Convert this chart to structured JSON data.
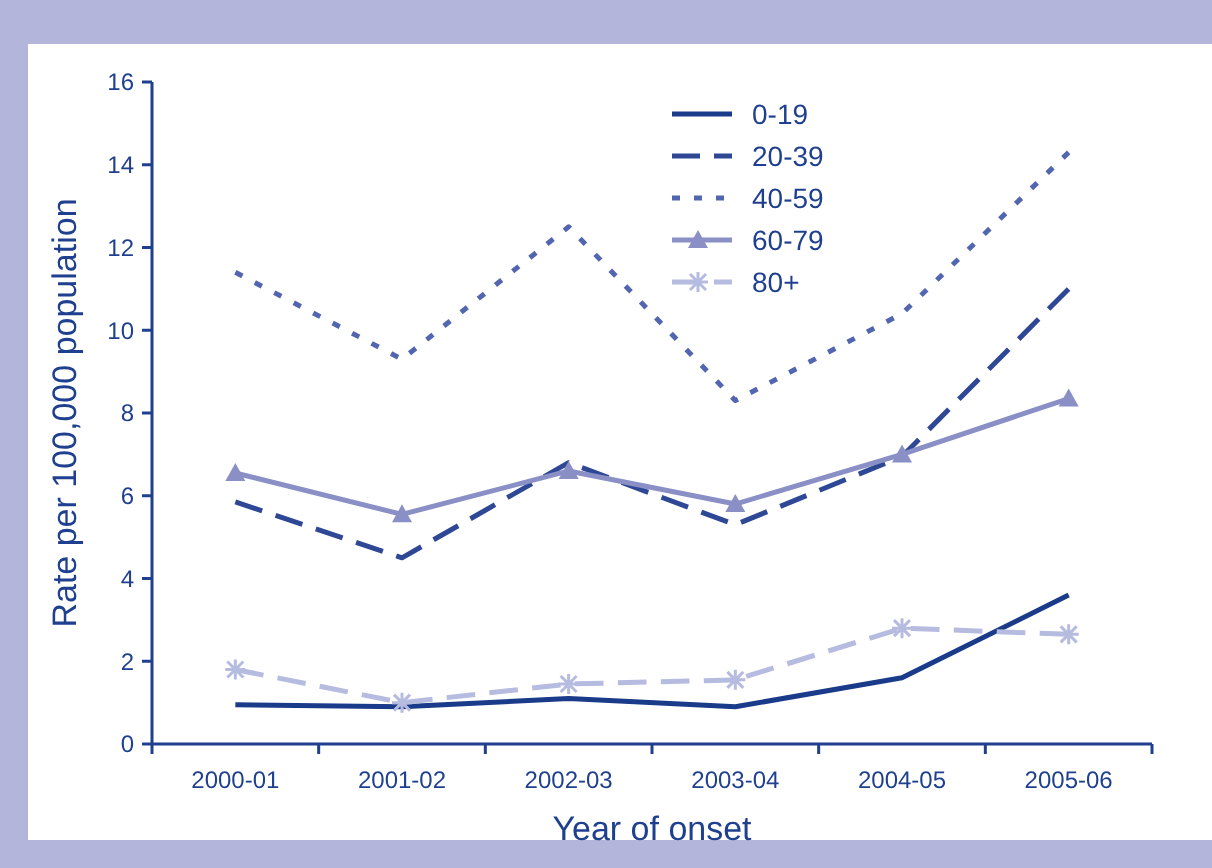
{
  "chart_data": {
    "type": "line",
    "xlabel": "Year of onset",
    "ylabel": "Rate per 100,000 population",
    "categories": [
      "2000-01",
      "2001-02",
      "2002-03",
      "2003-04",
      "2004-05",
      "2005-06"
    ],
    "series": [
      {
        "name": "0-19",
        "color": "#1a3a8a",
        "line_style": "solid",
        "marker": "none",
        "values": [
          0.95,
          0.9,
          1.1,
          0.9,
          1.6,
          3.6
        ]
      },
      {
        "name": "20-39",
        "color": "#2e4896",
        "line_style": "dashed",
        "marker": "none",
        "values": [
          5.85,
          4.5,
          6.8,
          5.3,
          6.95,
          11.0
        ]
      },
      {
        "name": "40-59",
        "color": "#5266b0",
        "line_style": "dotted",
        "marker": "none",
        "values": [
          11.4,
          9.3,
          12.5,
          8.3,
          10.4,
          14.3
        ]
      },
      {
        "name": "60-79",
        "color": "#8a8fc6",
        "line_style": "solid",
        "marker": "triangle",
        "values": [
          6.55,
          5.55,
          6.6,
          5.8,
          7.0,
          8.35
        ]
      },
      {
        "name": "80+",
        "color": "#b6bbe0",
        "line_style": "dashed",
        "marker": "cross",
        "values": [
          1.8,
          1.0,
          1.45,
          1.55,
          2.8,
          2.65
        ]
      }
    ],
    "ylim": [
      0,
      16
    ],
    "yticks": [
      0,
      2,
      4,
      6,
      8,
      10,
      12,
      14,
      16
    ],
    "grid": false,
    "legend": "top right"
  }
}
